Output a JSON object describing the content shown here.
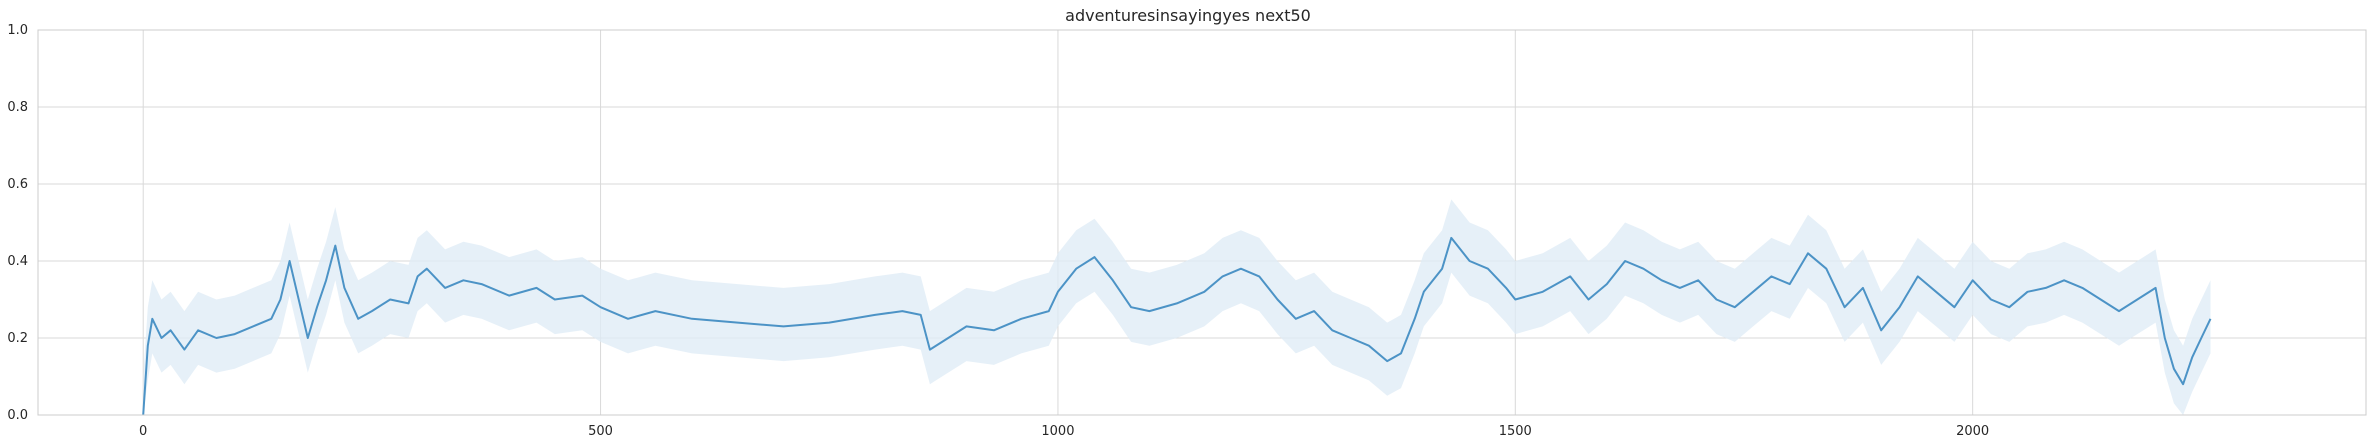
{
  "chart_data": {
    "type": "line",
    "title": "adventuresinsayingyes next50",
    "xlabel": "",
    "ylabel": "",
    "xlim": [
      -115,
      2430
    ],
    "ylim": [
      0.0,
      1.0
    ],
    "xticks": [
      0,
      500,
      1000,
      1500,
      2000
    ],
    "xtick_labels": [
      "0",
      "500",
      "1000",
      "1500",
      "2000"
    ],
    "yticks": [
      0.0,
      0.2,
      0.4,
      0.6,
      0.8,
      1.0
    ],
    "ytick_labels": [
      "0.0",
      "0.2",
      "0.4",
      "0.6",
      "0.8",
      "1.0"
    ],
    "grid": true,
    "colors": {
      "line": "#4c93c6",
      "band": "#deebf6",
      "grid": "#d9d9d9",
      "frame": "#cccccc"
    },
    "series": [
      {
        "x": [
          0,
          5,
          10,
          20,
          30,
          45,
          60,
          80,
          100,
          120,
          140,
          150,
          160,
          170,
          180,
          190,
          200,
          210,
          220,
          235,
          250,
          270,
          290,
          300,
          310,
          330,
          350,
          370,
          400,
          430,
          450,
          480,
          500,
          530,
          560,
          600,
          650,
          700,
          750,
          800,
          830,
          850,
          860,
          880,
          900,
          930,
          960,
          990,
          1000,
          1020,
          1040,
          1060,
          1080,
          1100,
          1130,
          1160,
          1180,
          1200,
          1220,
          1240,
          1260,
          1280,
          1300,
          1320,
          1340,
          1360,
          1375,
          1390,
          1400,
          1420,
          1430,
          1450,
          1470,
          1490,
          1500,
          1530,
          1560,
          1580,
          1600,
          1620,
          1640,
          1660,
          1680,
          1700,
          1720,
          1740,
          1760,
          1780,
          1800,
          1820,
          1840,
          1860,
          1880,
          1900,
          1920,
          1940,
          1960,
          1980,
          2000,
          2020,
          2040,
          2060,
          2080,
          2100,
          2120,
          2140,
          2160,
          2180,
          2200,
          2210,
          2220,
          2230,
          2240,
          2250,
          2260
        ],
        "y": [
          0.0,
          0.18,
          0.25,
          0.2,
          0.22,
          0.17,
          0.22,
          0.2,
          0.21,
          0.23,
          0.25,
          0.3,
          0.4,
          0.3,
          0.2,
          0.28,
          0.35,
          0.44,
          0.33,
          0.25,
          0.27,
          0.3,
          0.29,
          0.36,
          0.38,
          0.33,
          0.35,
          0.34,
          0.31,
          0.33,
          0.3,
          0.31,
          0.28,
          0.25,
          0.27,
          0.25,
          0.24,
          0.23,
          0.24,
          0.26,
          0.27,
          0.26,
          0.17,
          0.2,
          0.23,
          0.22,
          0.25,
          0.27,
          0.32,
          0.38,
          0.41,
          0.35,
          0.28,
          0.27,
          0.29,
          0.32,
          0.36,
          0.38,
          0.36,
          0.3,
          0.25,
          0.27,
          0.22,
          0.2,
          0.18,
          0.14,
          0.16,
          0.25,
          0.32,
          0.38,
          0.46,
          0.4,
          0.38,
          0.33,
          0.3,
          0.32,
          0.36,
          0.3,
          0.34,
          0.4,
          0.38,
          0.35,
          0.33,
          0.35,
          0.3,
          0.28,
          0.32,
          0.36,
          0.34,
          0.42,
          0.38,
          0.28,
          0.33,
          0.22,
          0.28,
          0.36,
          0.32,
          0.28,
          0.35,
          0.3,
          0.28,
          0.32,
          0.33,
          0.35,
          0.33,
          0.3,
          0.27,
          0.3,
          0.33,
          0.2,
          0.12,
          0.08,
          0.15,
          0.2,
          0.25
        ]
      }
    ]
  }
}
